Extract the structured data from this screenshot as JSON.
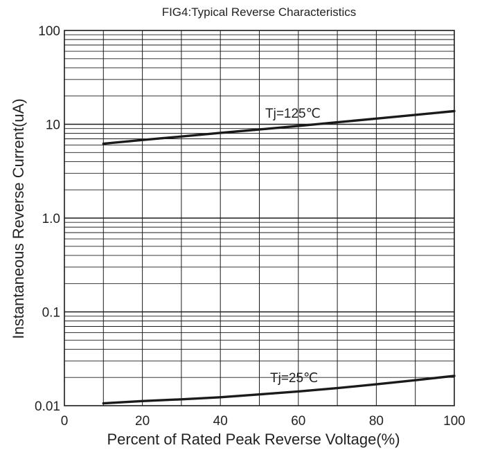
{
  "chart_data": {
    "type": "line",
    "title": "FIG4:Typical Reverse Characteristics",
    "xlabel": "Percent of Rated Peak Reverse Voltage(%)",
    "ylabel": "Instantaneous Reverse Current(uA)",
    "xlim": [
      0,
      100
    ],
    "ylim": [
      0.01,
      100
    ],
    "yscale": "log",
    "grid": true,
    "x_ticks": [
      0,
      20,
      40,
      60,
      80,
      100
    ],
    "x_tick_labels": [
      "0",
      "20",
      "40",
      "60",
      "80",
      "100"
    ],
    "y_ticks": [
      0.01,
      0.1,
      1,
      10,
      100
    ],
    "y_tick_labels": [
      "0.01",
      "0.1",
      "1.0",
      "10",
      "100"
    ],
    "series": [
      {
        "name": "Tj=125℃",
        "x": [
          10,
          20,
          30,
          40,
          50,
          60,
          70,
          80,
          90,
          100
        ],
        "values": [
          6.2,
          6.8,
          7.4,
          8.1,
          8.8,
          9.6,
          10.5,
          11.5,
          12.6,
          13.8
        ]
      },
      {
        "name": "Tj=25℃",
        "x": [
          10,
          20,
          30,
          40,
          50,
          60,
          70,
          80,
          90,
          100
        ],
        "values": [
          0.0106,
          0.0112,
          0.0117,
          0.0123,
          0.0132,
          0.0142,
          0.0154,
          0.0169,
          0.0187,
          0.0208
        ]
      }
    ],
    "line_color": "#1a1a1a",
    "grid_color": "#1a1a1a"
  }
}
